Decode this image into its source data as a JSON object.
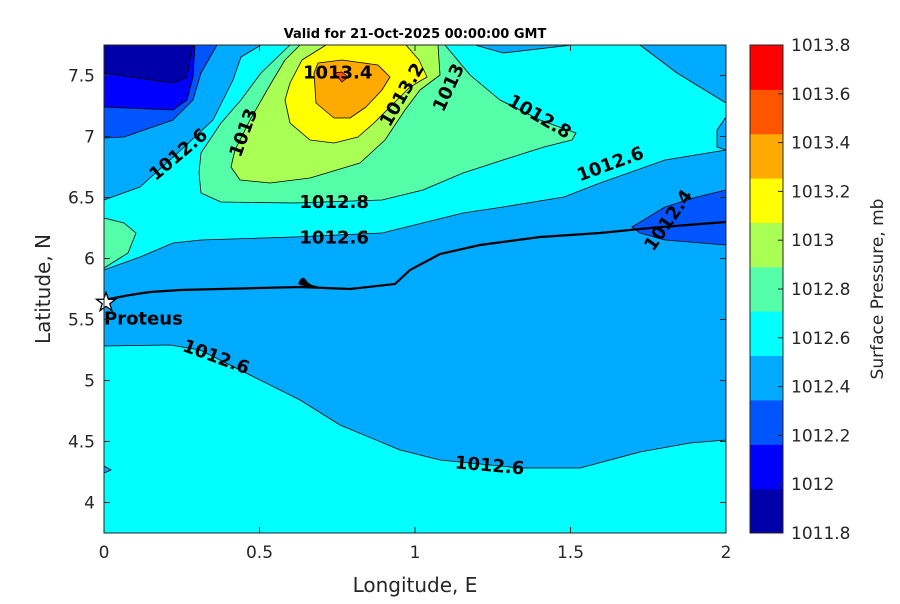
{
  "chart_data": {
    "type": "contour",
    "title": "Valid for 21-Oct-2025 00:00:00 GMT",
    "xlabel": "Longitude, E",
    "ylabel": "Latitude, N",
    "xlim": [
      0,
      2
    ],
    "ylim": [
      3.75,
      7.75
    ],
    "xticks": [
      "0",
      "0.5",
      "1",
      "1.5",
      "2"
    ],
    "xtick_values": [
      0,
      0.5,
      1,
      1.5,
      2
    ],
    "yticks": [
      "4",
      "4.5",
      "5",
      "5.5",
      "6",
      "6.5",
      "7",
      "7.5"
    ],
    "ytick_values": [
      4,
      4.5,
      5,
      5.5,
      6,
      6.5,
      7,
      7.5
    ],
    "colorbar": {
      "label": "Surface Pressure, mb",
      "ticks": [
        "1011.8",
        "1012",
        "1012.2",
        "1012.4",
        "1012.6",
        "1012.8",
        "1013",
        "1013.2",
        "1013.4",
        "1013.6",
        "1013.8"
      ],
      "colors": [
        "#0000aa",
        "#0000ff",
        "#0055ff",
        "#00aaff",
        "#00ffff",
        "#55ffaa",
        "#aaff55",
        "#ffff00",
        "#ffaa00",
        "#ff5500",
        "#ff0000"
      ]
    },
    "contour_labels": [
      {
        "text": "1013.4",
        "lon": 0.79,
        "lat": 7.52
      },
      {
        "text": "1013.2",
        "lon": 0.94,
        "lat": 7.34
      },
      {
        "text": "1013",
        "lon": 1.09,
        "lat": 7.4
      },
      {
        "text": "1012.8",
        "lon": 1.4,
        "lat": 7.16
      },
      {
        "text": "1012.6",
        "lon": 0.24,
        "lat": 6.85
      },
      {
        "text": "1013",
        "lon": 0.45,
        "lat": 7.03
      },
      {
        "text": "1012.8",
        "lon": 0.74,
        "lat": 6.46
      },
      {
        "text": "1012.6",
        "lon": 0.74,
        "lat": 6.17
      },
      {
        "text": "1012.6",
        "lon": 1.68,
        "lat": 6.73
      },
      {
        "text": "1012.4",
        "lon": 1.79,
        "lat": 6.36
      },
      {
        "text": "1012.6",
        "lon": 0.36,
        "lat": 5.19
      },
      {
        "text": "1012.6",
        "lon": 1.24,
        "lat": 4.3
      }
    ],
    "marker": {
      "label": "Proteus",
      "lon": 0.0,
      "lat": 5.64,
      "symbol": "star-icon"
    }
  }
}
